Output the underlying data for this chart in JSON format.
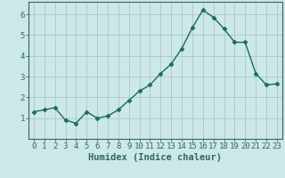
{
  "x": [
    0,
    1,
    2,
    3,
    4,
    5,
    6,
    7,
    8,
    9,
    10,
    11,
    12,
    13,
    14,
    15,
    16,
    17,
    18,
    19,
    20,
    21,
    22,
    23
  ],
  "y": [
    1.3,
    1.4,
    1.5,
    0.9,
    0.75,
    1.3,
    1.0,
    1.1,
    1.4,
    1.85,
    2.3,
    2.6,
    3.15,
    3.6,
    4.35,
    5.35,
    6.2,
    5.85,
    5.3,
    4.65,
    4.65,
    3.15,
    2.6,
    2.65
  ],
  "line_color": "#1a6b5a",
  "marker": "D",
  "markersize": 2.5,
  "linewidth": 1.0,
  "xlabel": "Humidex (Indice chaleur)",
  "bg_color": "#cce8e8",
  "grid_color": "#b0cccc",
  "xlim": [
    -0.5,
    23.5
  ],
  "ylim": [
    0.0,
    6.6
  ],
  "yticks": [
    1,
    2,
    3,
    4,
    5,
    6
  ],
  "xticks": [
    0,
    1,
    2,
    3,
    4,
    5,
    6,
    7,
    8,
    9,
    10,
    11,
    12,
    13,
    14,
    15,
    16,
    17,
    18,
    19,
    20,
    21,
    22,
    23
  ],
  "tick_fontsize": 6.5,
  "xlabel_fontsize": 7.5,
  "spine_color": "#336666"
}
